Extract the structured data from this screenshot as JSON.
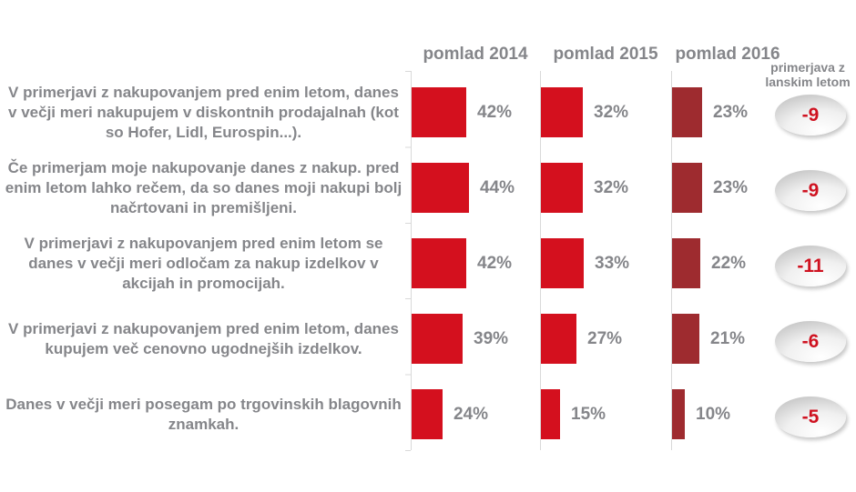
{
  "header": {
    "columns": [
      "pomlad 2014",
      "pomlad 2015",
      "pomlad 2016"
    ],
    "comparison": {
      "line1": "primerjava z",
      "line2": "lanskim letom"
    }
  },
  "rows": [
    {
      "statement": "V primerjavi z nakupovanjem pred enim letom, danes v večji meri nakupujem v diskontnih prodajalnah (kot so Hofer, Lidl, Eurospin...).",
      "values": [
        42,
        32,
        23
      ],
      "labels": [
        "42%",
        "32%",
        "23%"
      ],
      "change": "-9"
    },
    {
      "statement": "Če primerjam moje nakupovanje danes z nakup. pred enim letom lahko rečem, da so danes moji nakupi bolj načrtovani in premišljeni.",
      "values": [
        44,
        32,
        23
      ],
      "labels": [
        "44%",
        "32%",
        "23%"
      ],
      "change": "-9"
    },
    {
      "statement": "V primerjavi z nakupovanjem pred enim letom se danes v večji meri odločam za nakup izdelkov v akcijah in promocijah.",
      "values": [
        42,
        33,
        22
      ],
      "labels": [
        "42%",
        "33%",
        "22%"
      ],
      "change": "-11"
    },
    {
      "statement": "V primerjavi z nakupovanjem pred enim letom, danes kupujem več cenovno ugodnejših izdelkov.",
      "values": [
        39,
        27,
        21
      ],
      "labels": [
        "39%",
        "27%",
        "21%"
      ],
      "change": "-6"
    },
    {
      "statement": "Danes v večji meri posegam po trgovinskih blagovnih znamkah.",
      "values": [
        24,
        15,
        10
      ],
      "labels": [
        "24%",
        "15%",
        "10%"
      ],
      "change": "-5"
    }
  ],
  "colors": {
    "bar_red": "#d4101e",
    "bar_dark_red": "#9e2b2f",
    "label_gray": "#85868a",
    "badge_text_red": "#cf1220",
    "axis_gray": "#d9d9d9"
  },
  "chart_data": {
    "type": "bar",
    "orientation": "horizontal",
    "value_format": "percent",
    "categories": [
      "V primerjavi z nakupovanjem pred enim letom, danes v večji meri nakupujem v diskontnih prodajalnah (kot so Hofer, Lidl, Eurospin...).",
      "Če primerjam moje nakupovanje danes z nakup. pred enim letom lahko rečem, da so danes moji nakupi bolj načrtovani in premišljeni.",
      "V primerjavi z nakupovanjem pred enim letom se danes v večji meri odločam za nakup izdelkov v akcijah in promocijah.",
      "V primerjavi z nakupovanjem pred enim letom, danes kupujem več cenovno ugodnejših izdelkov.",
      "Danes v večji meri posegam po trgovinskih blagovnih znamkah."
    ],
    "series": [
      {
        "name": "pomlad 2014",
        "values": [
          42,
          44,
          42,
          39,
          24
        ],
        "color": "#d4101e"
      },
      {
        "name": "pomlad 2015",
        "values": [
          32,
          32,
          33,
          27,
          15
        ],
        "color": "#d4101e"
      },
      {
        "name": "pomlad 2016",
        "values": [
          23,
          23,
          22,
          21,
          10
        ],
        "color": "#9e2b2f"
      }
    ],
    "annotations": {
      "label": "primerjava z lanskim letom",
      "values": [
        -9,
        -9,
        -11,
        -6,
        -5
      ]
    },
    "legend_position": "top",
    "grid": false,
    "x_axis_labels_visible": false
  }
}
